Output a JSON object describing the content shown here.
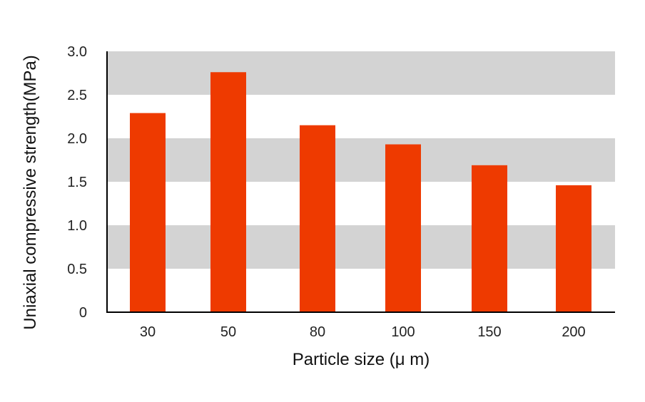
{
  "chart_data": {
    "type": "bar",
    "title": "",
    "xlabel": "Particle size (μ m)",
    "ylabel": "Uniaxial compressive strength(MPa)",
    "categories": [
      "30",
      "50",
      "80",
      "100",
      "150",
      "200"
    ],
    "values": [
      2.29,
      2.76,
      2.15,
      1.93,
      1.69,
      1.46
    ],
    "ylim": [
      0,
      3.0
    ],
    "yticks": [
      "0",
      "0.5",
      "1.0",
      "1.5",
      "2.0",
      "2.5",
      "3.0"
    ],
    "bar_color": "#ee3a00",
    "band_color": "#d3d3d3",
    "grid": "alternating horizontal bands",
    "legend": "none"
  }
}
